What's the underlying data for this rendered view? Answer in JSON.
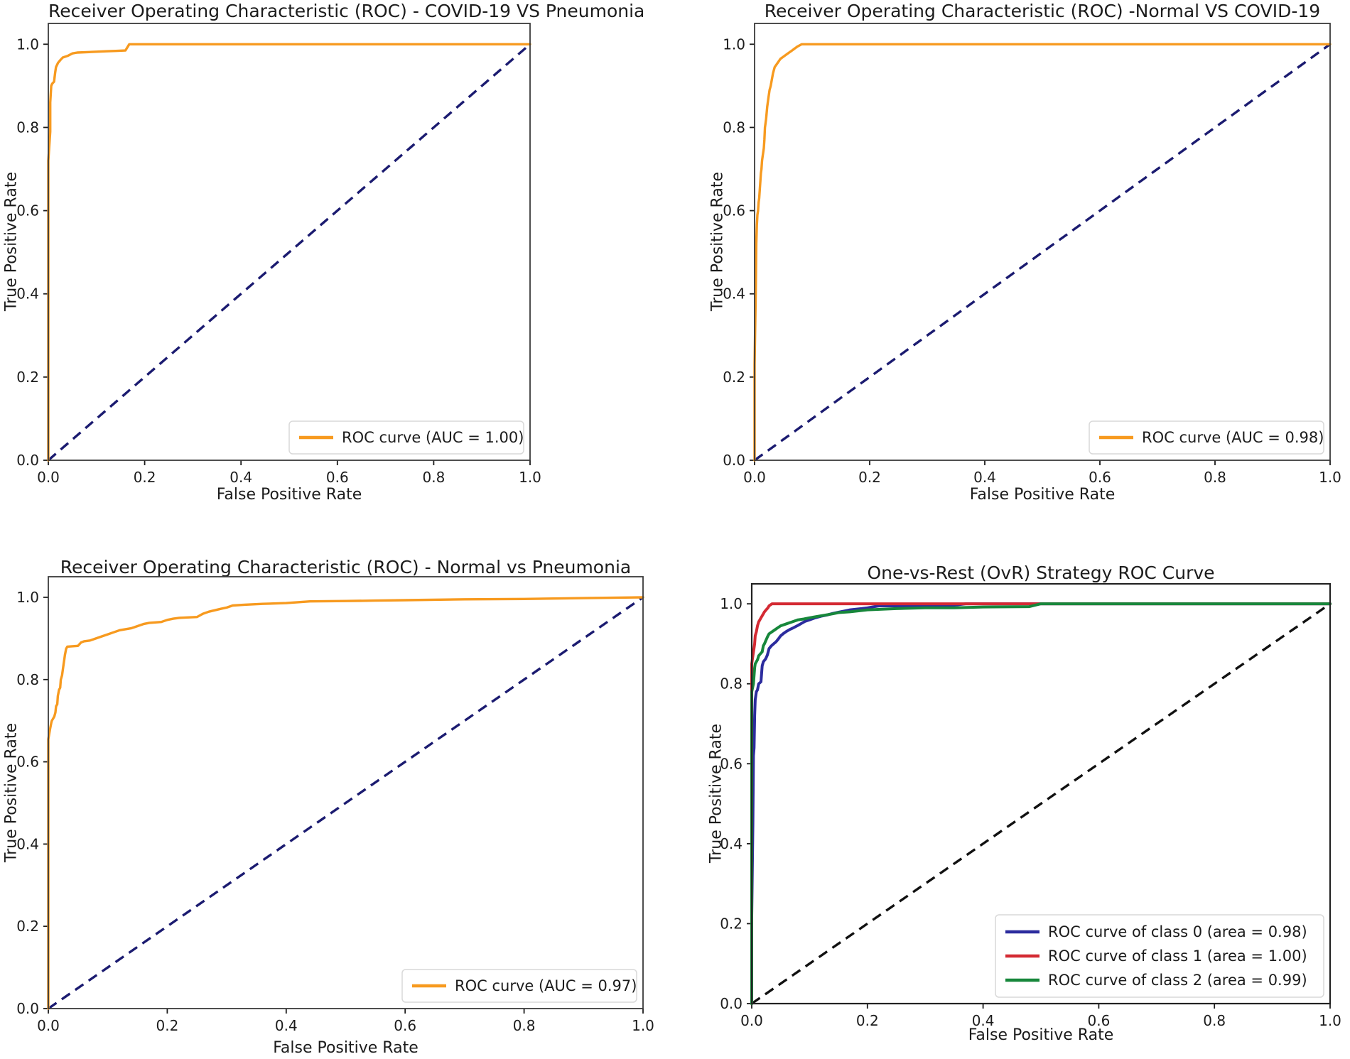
{
  "figure": {
    "background": "#ffffff",
    "tick_color": "#1c1c1c",
    "spine_color": "#3a3a3a"
  },
  "chart_data": [
    {
      "type": "line",
      "title": "Receiver Operating Characteristic (ROC) - COVID-19 VS Pneumonia",
      "xlabel": "False Positive Rate",
      "ylabel": "True Positive Rate",
      "xticks": [
        "0.0",
        "0.2",
        "0.4",
        "0.6",
        "0.8",
        "1.0"
      ],
      "yticks": [
        "0.0",
        "0.2",
        "0.4",
        "0.6",
        "0.8",
        "1.0"
      ],
      "xlim": [
        0.0,
        1.0
      ],
      "ylim": [
        0.0,
        1.05
      ],
      "grid": false,
      "legend_position": "lower right",
      "diagonal": {
        "color": "#1B1B70",
        "style": "dashed"
      },
      "series": [
        {
          "name": "ROC curve (AUC = 1.00)",
          "auc": "1.00",
          "color": "#F79A1F",
          "points": [
            [
              0,
              0
            ],
            [
              0,
              0.72
            ],
            [
              0.004,
              0.79
            ],
            [
              0.004,
              0.86
            ],
            [
              0.006,
              0.9
            ],
            [
              0.008,
              0.905
            ],
            [
              0.012,
              0.91
            ],
            [
              0.014,
              0.93
            ],
            [
              0.016,
              0.945
            ],
            [
              0.02,
              0.955
            ],
            [
              0.025,
              0.962
            ],
            [
              0.03,
              0.968
            ],
            [
              0.04,
              0.972
            ],
            [
              0.05,
              0.978
            ],
            [
              0.06,
              0.98
            ],
            [
              0.08,
              0.981
            ],
            [
              0.1,
              0.982
            ],
            [
              0.12,
              0.983
            ],
            [
              0.14,
              0.984
            ],
            [
              0.16,
              0.985
            ],
            [
              0.168,
              1.0
            ],
            [
              1,
              1
            ]
          ]
        }
      ]
    },
    {
      "type": "line",
      "title": "Receiver Operating Characteristic (ROC) -Normal VS COVID-19",
      "xlabel": "False Positive Rate",
      "ylabel": "True Positive Rate",
      "xticks": [
        "0.0",
        "0.2",
        "0.4",
        "0.6",
        "0.8",
        "1.0"
      ],
      "yticks": [
        "0.0",
        "0.2",
        "0.4",
        "0.6",
        "0.8",
        "1.0"
      ],
      "xlim": [
        0.0,
        1.0
      ],
      "ylim": [
        0.0,
        1.05
      ],
      "grid": false,
      "legend_position": "lower right",
      "diagonal": {
        "color": "#1B1B70",
        "style": "dashed"
      },
      "series": [
        {
          "name": "ROC curve (AUC = 0.98)",
          "auc": "0.98",
          "color": "#F79A1F",
          "points": [
            [
              0,
              0
            ],
            [
              0,
              0.23
            ],
            [
              0.002,
              0.4
            ],
            [
              0.003,
              0.52
            ],
            [
              0.004,
              0.565
            ],
            [
              0.005,
              0.59
            ],
            [
              0.006,
              0.6
            ],
            [
              0.007,
              0.62
            ],
            [
              0.008,
              0.63
            ],
            [
              0.009,
              0.65
            ],
            [
              0.01,
              0.67
            ],
            [
              0.011,
              0.69
            ],
            [
              0.012,
              0.7
            ],
            [
              0.013,
              0.72
            ],
            [
              0.014,
              0.73
            ],
            [
              0.016,
              0.75
            ],
            [
              0.017,
              0.77
            ],
            [
              0.018,
              0.8
            ],
            [
              0.02,
              0.82
            ],
            [
              0.022,
              0.85
            ],
            [
              0.024,
              0.87
            ],
            [
              0.026,
              0.89
            ],
            [
              0.028,
              0.9
            ],
            [
              0.03,
              0.915
            ],
            [
              0.032,
              0.93
            ],
            [
              0.035,
              0.945
            ],
            [
              0.04,
              0.955
            ],
            [
              0.045,
              0.965
            ],
            [
              0.05,
              0.97
            ],
            [
              0.055,
              0.975
            ],
            [
              0.06,
              0.98
            ],
            [
              0.065,
              0.985
            ],
            [
              0.07,
              0.99
            ],
            [
              0.075,
              0.995
            ],
            [
              0.082,
              1.0
            ],
            [
              1,
              1
            ]
          ]
        }
      ]
    },
    {
      "type": "line",
      "title": "Receiver Operating Characteristic (ROC) - Normal vs Pneumonia",
      "xlabel": "False Positive Rate",
      "ylabel": "True Positive Rate",
      "xticks": [
        "0.0",
        "0.2",
        "0.4",
        "0.6",
        "0.8",
        "1.0"
      ],
      "yticks": [
        "0.0",
        "0.2",
        "0.4",
        "0.6",
        "0.8",
        "1.0"
      ],
      "xlim": [
        0.0,
        1.0
      ],
      "ylim": [
        0.0,
        1.05
      ],
      "grid": false,
      "legend_position": "lower right",
      "diagonal": {
        "color": "#1B1B70",
        "style": "dashed"
      },
      "series": [
        {
          "name": "ROC curve (AUC = 0.97)",
          "auc": "0.97",
          "color": "#F79A1F",
          "points": [
            [
              0,
              0
            ],
            [
              0,
              0.655
            ],
            [
              0.003,
              0.68
            ],
            [
              0.005,
              0.695
            ],
            [
              0.006,
              0.7
            ],
            [
              0.008,
              0.705
            ],
            [
              0.01,
              0.71
            ],
            [
              0.012,
              0.72
            ],
            [
              0.013,
              0.735
            ],
            [
              0.015,
              0.74
            ],
            [
              0.016,
              0.76
            ],
            [
              0.018,
              0.775
            ],
            [
              0.02,
              0.78
            ],
            [
              0.021,
              0.8
            ],
            [
              0.023,
              0.81
            ],
            [
              0.025,
              0.83
            ],
            [
              0.027,
              0.85
            ],
            [
              0.028,
              0.86
            ],
            [
              0.03,
              0.875
            ],
            [
              0.032,
              0.88
            ],
            [
              0.05,
              0.882
            ],
            [
              0.055,
              0.89
            ],
            [
              0.06,
              0.893
            ],
            [
              0.07,
              0.895
            ],
            [
              0.08,
              0.9
            ],
            [
              0.09,
              0.905
            ],
            [
              0.1,
              0.91
            ],
            [
              0.11,
              0.915
            ],
            [
              0.12,
              0.92
            ],
            [
              0.14,
              0.925
            ],
            [
              0.15,
              0.93
            ],
            [
              0.16,
              0.935
            ],
            [
              0.17,
              0.938
            ],
            [
              0.19,
              0.94
            ],
            [
              0.2,
              0.945
            ],
            [
              0.21,
              0.948
            ],
            [
              0.22,
              0.95
            ],
            [
              0.25,
              0.952
            ],
            [
              0.26,
              0.96
            ],
            [
              0.27,
              0.965
            ],
            [
              0.29,
              0.972
            ],
            [
              0.3,
              0.975
            ],
            [
              0.31,
              0.98
            ],
            [
              0.33,
              0.982
            ],
            [
              0.36,
              0.984
            ],
            [
              0.4,
              0.986
            ],
            [
              0.44,
              0.99
            ],
            [
              0.5,
              0.991
            ],
            [
              0.55,
              0.992
            ],
            [
              0.6,
              0.993
            ],
            [
              0.7,
              0.995
            ],
            [
              0.8,
              0.996
            ],
            [
              0.9,
              0.998
            ],
            [
              1,
              1
            ]
          ]
        }
      ]
    },
    {
      "type": "line",
      "title": "One-vs-Rest (OvR) Strategy ROC Curve",
      "xlabel": "False Positive Rate",
      "ylabel": "True Positive Rate",
      "xticks": [
        "0.0",
        "0.2",
        "0.4",
        "0.6",
        "0.8",
        "1.0"
      ],
      "yticks": [
        "0.0",
        "0.2",
        "0.4",
        "0.6",
        "0.8",
        "1.0"
      ],
      "xlim": [
        0.0,
        1.0
      ],
      "ylim": [
        0.0,
        1.05
      ],
      "grid": false,
      "legend_position": "lower right",
      "diagonal": {
        "color": "#111111",
        "style": "dashed"
      },
      "series": [
        {
          "name": "ROC curve of class 0 (area = 0.98)",
          "auc": "0.98",
          "color": "#2C2C9E",
          "points": [
            [
              0,
              0
            ],
            [
              0,
              0.22
            ],
            [
              0.002,
              0.45
            ],
            [
              0.003,
              0.62
            ],
            [
              0.004,
              0.64
            ],
            [
              0.005,
              0.72
            ],
            [
              0.006,
              0.76
            ],
            [
              0.008,
              0.78
            ],
            [
              0.01,
              0.785
            ],
            [
              0.012,
              0.8
            ],
            [
              0.016,
              0.805
            ],
            [
              0.018,
              0.845
            ],
            [
              0.02,
              0.855
            ],
            [
              0.024,
              0.862
            ],
            [
              0.027,
              0.872
            ],
            [
              0.03,
              0.888
            ],
            [
              0.034,
              0.895
            ],
            [
              0.038,
              0.9
            ],
            [
              0.042,
              0.905
            ],
            [
              0.046,
              0.912
            ],
            [
              0.05,
              0.92
            ],
            [
              0.055,
              0.926
            ],
            [
              0.06,
              0.931
            ],
            [
              0.066,
              0.936
            ],
            [
              0.072,
              0.94
            ],
            [
              0.08,
              0.946
            ],
            [
              0.086,
              0.951
            ],
            [
              0.092,
              0.956
            ],
            [
              0.1,
              0.96
            ],
            [
              0.11,
              0.965
            ],
            [
              0.12,
              0.969
            ],
            [
              0.13,
              0.972
            ],
            [
              0.14,
              0.976
            ],
            [
              0.15,
              0.979
            ],
            [
              0.16,
              0.982
            ],
            [
              0.17,
              0.985
            ],
            [
              0.19,
              0.988
            ],
            [
              0.2,
              0.99
            ],
            [
              0.22,
              0.995
            ],
            [
              0.34,
              0.995
            ],
            [
              0.37,
              1.0
            ],
            [
              1,
              1
            ]
          ]
        },
        {
          "name": "ROC curve of class 1 (area = 1.00)",
          "auc": "1.00",
          "color": "#D42A33",
          "points": [
            [
              0,
              0
            ],
            [
              0,
              0.85
            ],
            [
              0.002,
              0.87
            ],
            [
              0.004,
              0.89
            ],
            [
              0.005,
              0.9
            ],
            [
              0.006,
              0.92
            ],
            [
              0.008,
              0.93
            ],
            [
              0.01,
              0.945
            ],
            [
              0.012,
              0.955
            ],
            [
              0.014,
              0.96
            ],
            [
              0.016,
              0.965
            ],
            [
              0.018,
              0.97
            ],
            [
              0.02,
              0.975
            ],
            [
              0.022,
              0.98
            ],
            [
              0.025,
              0.985
            ],
            [
              0.028,
              0.99
            ],
            [
              0.03,
              0.995
            ],
            [
              0.035,
              1.0
            ],
            [
              1,
              1
            ]
          ]
        },
        {
          "name": "ROC curve of class 2 (area = 0.99)",
          "auc": "0.99",
          "color": "#17873B",
          "points": [
            [
              0,
              0
            ],
            [
              0,
              0.78
            ],
            [
              0.003,
              0.8
            ],
            [
              0.005,
              0.84
            ],
            [
              0.006,
              0.85
            ],
            [
              0.008,
              0.855
            ],
            [
              0.01,
              0.86
            ],
            [
              0.012,
              0.87
            ],
            [
              0.015,
              0.875
            ],
            [
              0.018,
              0.88
            ],
            [
              0.02,
              0.895
            ],
            [
              0.022,
              0.9
            ],
            [
              0.025,
              0.91
            ],
            [
              0.028,
              0.92
            ],
            [
              0.03,
              0.925
            ],
            [
              0.035,
              0.93
            ],
            [
              0.04,
              0.935
            ],
            [
              0.045,
              0.94
            ],
            [
              0.05,
              0.945
            ],
            [
              0.06,
              0.95
            ],
            [
              0.07,
              0.955
            ],
            [
              0.08,
              0.96
            ],
            [
              0.09,
              0.962
            ],
            [
              0.1,
              0.965
            ],
            [
              0.12,
              0.97
            ],
            [
              0.14,
              0.975
            ],
            [
              0.15,
              0.978
            ],
            [
              0.17,
              0.98
            ],
            [
              0.2,
              0.985
            ],
            [
              0.25,
              0.988
            ],
            [
              0.3,
              0.99
            ],
            [
              0.35,
              0.99
            ],
            [
              0.4,
              0.992
            ],
            [
              0.48,
              0.993
            ],
            [
              0.5,
              1.0
            ],
            [
              1,
              1
            ]
          ]
        }
      ]
    }
  ]
}
